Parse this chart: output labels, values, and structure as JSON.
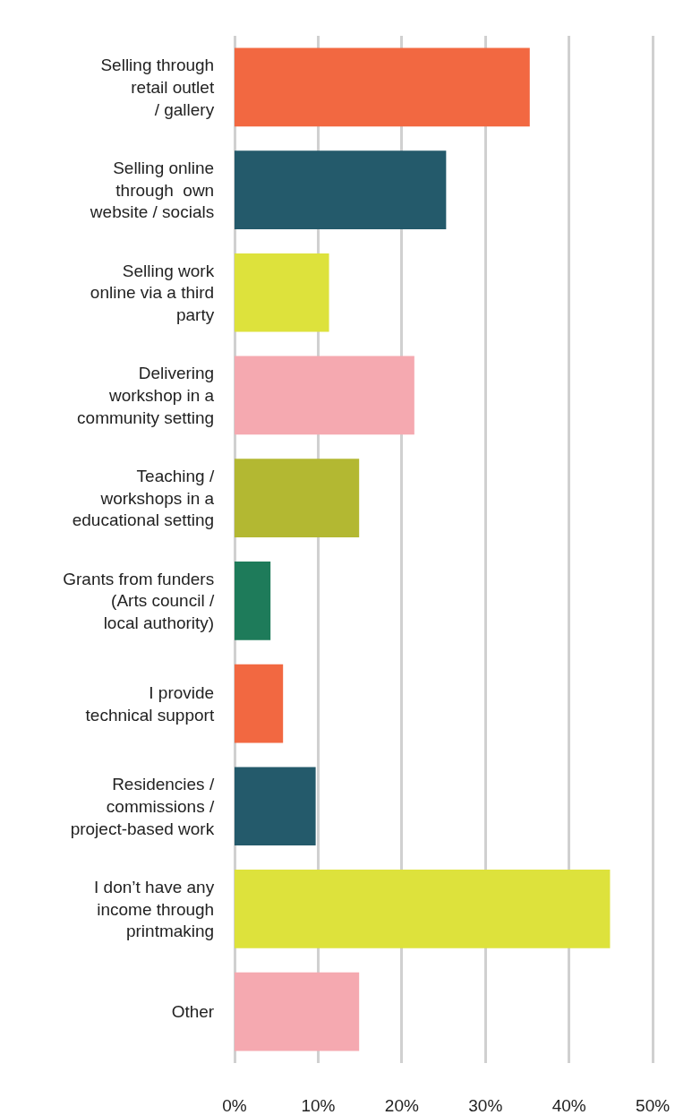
{
  "chart_data": {
    "type": "bar",
    "orientation": "horizontal",
    "categories": [
      "Selling through\nretail outlet\n/ gallery",
      "Selling online\nthrough  own\nwebsite / socials",
      "Selling work\nonline via a third\nparty",
      "Delivering\nworkshop in a\ncommunity setting",
      "Teaching /\nworkshops in a\neducational setting",
      "Grants from funders\n(Arts council /\nlocal authority)",
      "I provide\ntechnical support",
      "Residencies /\ncommissions /\nproject-based work",
      "I don’t have any\nincome through\nprintmaking",
      "Other"
    ],
    "values": [
      35.3,
      25.3,
      11.3,
      21.5,
      14.9,
      4.3,
      5.8,
      9.7,
      44.9,
      14.9
    ],
    "colors": [
      "#f26841",
      "#245a6b",
      "#dde23c",
      "#f5a9b0",
      "#b3b832",
      "#1e7b5a",
      "#f26841",
      "#245a6b",
      "#dde23c",
      "#f5a9b0"
    ],
    "xlim": [
      0,
      54.7
    ],
    "xticks": [
      {
        "value": 0,
        "label": "0%"
      },
      {
        "value": 10,
        "label": "10%"
      },
      {
        "value": 20,
        "label": "20%"
      },
      {
        "value": 30,
        "label": "30%"
      },
      {
        "value": 40,
        "label": "40%"
      },
      {
        "value": 50,
        "label": "50%"
      }
    ],
    "grid": "x"
  }
}
